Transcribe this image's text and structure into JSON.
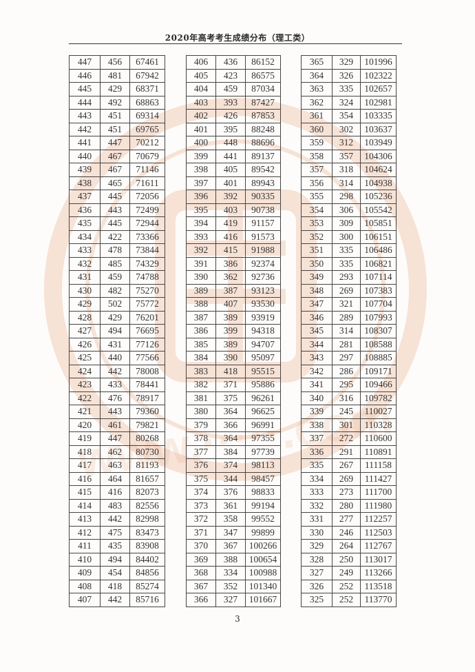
{
  "header": {
    "title": "2020年高考考生成绩分布（理工类）"
  },
  "footer": {
    "page_number": "3"
  },
  "watermark_color": "#e8a27a",
  "tables": [
    {
      "rows": [
        [
          "447",
          "456",
          "67461"
        ],
        [
          "446",
          "481",
          "67942"
        ],
        [
          "445",
          "429",
          "68371"
        ],
        [
          "444",
          "492",
          "68863"
        ],
        [
          "443",
          "451",
          "69314"
        ],
        [
          "442",
          "451",
          "69765"
        ],
        [
          "441",
          "447",
          "70212"
        ],
        [
          "440",
          "467",
          "70679"
        ],
        [
          "439",
          "467",
          "71146"
        ],
        [
          "438",
          "465",
          "71611"
        ],
        [
          "437",
          "445",
          "72056"
        ],
        [
          "436",
          "443",
          "72499"
        ],
        [
          "435",
          "445",
          "72944"
        ],
        [
          "434",
          "422",
          "73366"
        ],
        [
          "433",
          "478",
          "73844"
        ],
        [
          "432",
          "485",
          "74329"
        ],
        [
          "431",
          "459",
          "74788"
        ],
        [
          "430",
          "482",
          "75270"
        ],
        [
          "429",
          "502",
          "75772"
        ],
        [
          "428",
          "429",
          "76201"
        ],
        [
          "427",
          "494",
          "76695"
        ],
        [
          "426",
          "431",
          "77126"
        ],
        [
          "425",
          "440",
          "77566"
        ],
        [
          "424",
          "442",
          "78008"
        ],
        [
          "423",
          "433",
          "78441"
        ],
        [
          "422",
          "476",
          "78917"
        ],
        [
          "421",
          "443",
          "79360"
        ],
        [
          "420",
          "461",
          "79821"
        ],
        [
          "419",
          "447",
          "80268"
        ],
        [
          "418",
          "462",
          "80730"
        ],
        [
          "417",
          "463",
          "81193"
        ],
        [
          "416",
          "464",
          "81657"
        ],
        [
          "415",
          "416",
          "82073"
        ],
        [
          "414",
          "483",
          "82556"
        ],
        [
          "413",
          "442",
          "82998"
        ],
        [
          "412",
          "475",
          "83473"
        ],
        [
          "411",
          "435",
          "83908"
        ],
        [
          "410",
          "494",
          "84402"
        ],
        [
          "409",
          "454",
          "84856"
        ],
        [
          "408",
          "418",
          "85274"
        ],
        [
          "407",
          "442",
          "85716"
        ]
      ]
    },
    {
      "rows": [
        [
          "406",
          "436",
          "86152"
        ],
        [
          "405",
          "423",
          "86575"
        ],
        [
          "404",
          "459",
          "87034"
        ],
        [
          "403",
          "393",
          "87427"
        ],
        [
          "402",
          "426",
          "87853"
        ],
        [
          "401",
          "395",
          "88248"
        ],
        [
          "400",
          "448",
          "88696"
        ],
        [
          "399",
          "441",
          "89137"
        ],
        [
          "398",
          "405",
          "89542"
        ],
        [
          "397",
          "401",
          "89943"
        ],
        [
          "396",
          "392",
          "90335"
        ],
        [
          "395",
          "403",
          "90738"
        ],
        [
          "394",
          "419",
          "91157"
        ],
        [
          "393",
          "416",
          "91573"
        ],
        [
          "392",
          "415",
          "91988"
        ],
        [
          "391",
          "386",
          "92374"
        ],
        [
          "390",
          "362",
          "92736"
        ],
        [
          "389",
          "387",
          "93123"
        ],
        [
          "388",
          "407",
          "93530"
        ],
        [
          "387",
          "389",
          "93919"
        ],
        [
          "386",
          "399",
          "94318"
        ],
        [
          "385",
          "389",
          "94707"
        ],
        [
          "384",
          "390",
          "95097"
        ],
        [
          "383",
          "418",
          "95515"
        ],
        [
          "382",
          "371",
          "95886"
        ],
        [
          "381",
          "375",
          "96261"
        ],
        [
          "380",
          "364",
          "96625"
        ],
        [
          "379",
          "366",
          "96991"
        ],
        [
          "378",
          "364",
          "97355"
        ],
        [
          "377",
          "384",
          "97739"
        ],
        [
          "376",
          "374",
          "98113"
        ],
        [
          "375",
          "344",
          "98457"
        ],
        [
          "374",
          "376",
          "98833"
        ],
        [
          "373",
          "361",
          "99194"
        ],
        [
          "372",
          "358",
          "99552"
        ],
        [
          "371",
          "347",
          "99899"
        ],
        [
          "370",
          "367",
          "100266"
        ],
        [
          "369",
          "388",
          "100654"
        ],
        [
          "368",
          "334",
          "100988"
        ],
        [
          "367",
          "352",
          "101340"
        ],
        [
          "366",
          "327",
          "101667"
        ]
      ]
    },
    {
      "rows": [
        [
          "365",
          "329",
          "101996"
        ],
        [
          "364",
          "326",
          "102322"
        ],
        [
          "363",
          "335",
          "102657"
        ],
        [
          "362",
          "324",
          "102981"
        ],
        [
          "361",
          "354",
          "103335"
        ],
        [
          "360",
          "302",
          "103637"
        ],
        [
          "359",
          "312",
          "103949"
        ],
        [
          "358",
          "357",
          "104306"
        ],
        [
          "357",
          "318",
          "104624"
        ],
        [
          "356",
          "314",
          "104938"
        ],
        [
          "355",
          "298",
          "105236"
        ],
        [
          "354",
          "306",
          "105542"
        ],
        [
          "353",
          "309",
          "105851"
        ],
        [
          "352",
          "300",
          "106151"
        ],
        [
          "351",
          "335",
          "106486"
        ],
        [
          "350",
          "335",
          "106821"
        ],
        [
          "349",
          "293",
          "107114"
        ],
        [
          "348",
          "269",
          "107383"
        ],
        [
          "347",
          "321",
          "107704"
        ],
        [
          "346",
          "289",
          "107993"
        ],
        [
          "345",
          "314",
          "108307"
        ],
        [
          "344",
          "281",
          "108588"
        ],
        [
          "343",
          "297",
          "108885"
        ],
        [
          "342",
          "286",
          "109171"
        ],
        [
          "341",
          "295",
          "109466"
        ],
        [
          "340",
          "316",
          "109782"
        ],
        [
          "339",
          "245",
          "110027"
        ],
        [
          "338",
          "301",
          "110328"
        ],
        [
          "337",
          "272",
          "110600"
        ],
        [
          "336",
          "291",
          "110891"
        ],
        [
          "335",
          "267",
          "111158"
        ],
        [
          "334",
          "269",
          "111427"
        ],
        [
          "333",
          "273",
          "111700"
        ],
        [
          "332",
          "280",
          "111980"
        ],
        [
          "331",
          "277",
          "112257"
        ],
        [
          "330",
          "246",
          "112503"
        ],
        [
          "329",
          "264",
          "112767"
        ],
        [
          "328",
          "250",
          "113017"
        ],
        [
          "327",
          "249",
          "113266"
        ],
        [
          "326",
          "252",
          "113518"
        ],
        [
          "325",
          "252",
          "113770"
        ]
      ]
    }
  ]
}
